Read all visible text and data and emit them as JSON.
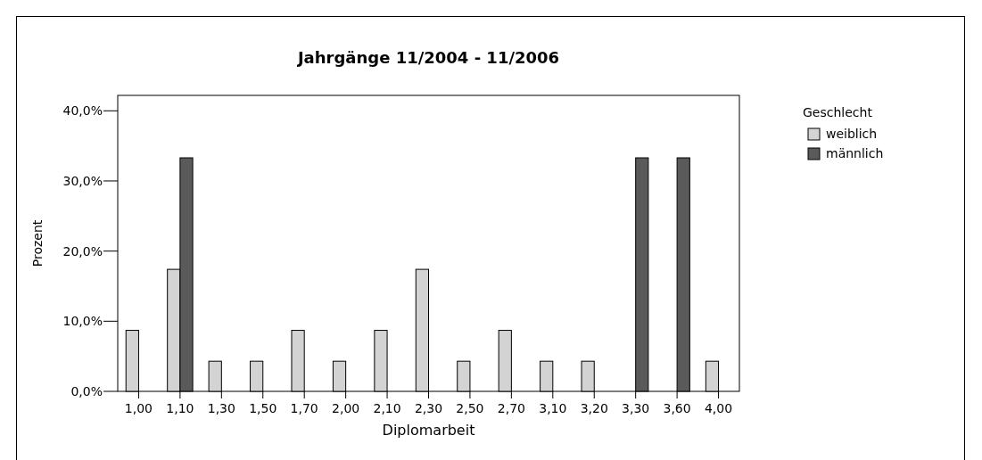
{
  "chart_data": {
    "type": "bar",
    "title": "Jahrgänge 11/2004 - 11/2006",
    "xlabel": "Diplomarbeit",
    "ylabel": "Prozent",
    "legend_title": "Geschlecht",
    "legend": "right",
    "categories": [
      "1,00",
      "1,10",
      "1,30",
      "1,50",
      "1,70",
      "2,00",
      "2,10",
      "2,30",
      "2,50",
      "2,70",
      "3,10",
      "3,20",
      "3,30",
      "3,60",
      "4,00"
    ],
    "series": [
      {
        "name": "weiblich",
        "color": "#d3d3d3",
        "values": [
          8.7,
          17.4,
          4.3,
          4.3,
          8.7,
          4.3,
          8.7,
          17.4,
          4.3,
          8.7,
          4.3,
          4.3,
          0,
          0,
          4.3
        ]
      },
      {
        "name": "männlich",
        "color": "#5a5a5a",
        "values": [
          0,
          33.3,
          0,
          0,
          0,
          0,
          0,
          0,
          0,
          0,
          0,
          0,
          33.3,
          33.3,
          0
        ]
      }
    ],
    "ylim": [
      0,
      42.2
    ],
    "yticks": [
      {
        "value": 0,
        "label": "0,0%"
      },
      {
        "value": 10,
        "label": "10,0%"
      },
      {
        "value": 20,
        "label": "20,0%"
      },
      {
        "value": 30,
        "label": "30,0%"
      },
      {
        "value": 40,
        "label": "40,0%"
      }
    ]
  }
}
